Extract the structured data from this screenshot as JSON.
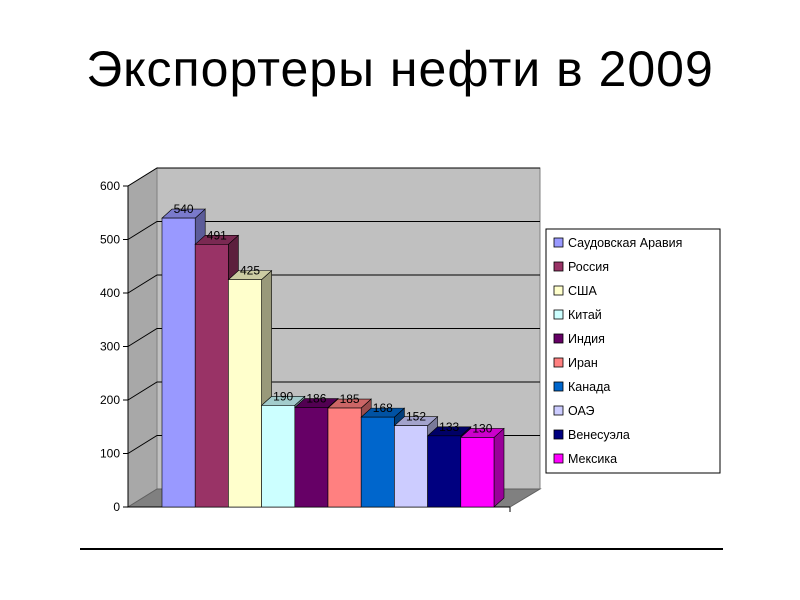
{
  "slide": {
    "title": "Экспортеры нефти в 2009"
  },
  "chart_data": {
    "type": "bar",
    "title": "Экспортеры нефти в 2009",
    "xlabel": "",
    "ylabel": "",
    "ylim": [
      0,
      600
    ],
    "yticks": [
      "0",
      "100",
      "200",
      "300",
      "400",
      "500",
      "600"
    ],
    "grid": true,
    "legend_position": "right",
    "series": [
      {
        "name": "Саудовская Аравия",
        "value": 540,
        "color": "#9999FF"
      },
      {
        "name": "Россия",
        "value": 491,
        "color": "#993366"
      },
      {
        "name": "США",
        "value": 425,
        "color": "#FFFFCC"
      },
      {
        "name": "Китай",
        "value": 190,
        "color": "#CCFFFF"
      },
      {
        "name": "Индия",
        "value": 186,
        "color": "#660066"
      },
      {
        "name": "Иран",
        "value": 185,
        "color": "#FF8080"
      },
      {
        "name": "Канада",
        "value": 168,
        "color": "#0066CC"
      },
      {
        "name": "ОАЭ",
        "value": 152,
        "color": "#CCCCFF"
      },
      {
        "name": "Венесуэла",
        "value": 133,
        "color": "#000080"
      },
      {
        "name": "Мексика",
        "value": 130,
        "color": "#FF00FF"
      }
    ]
  }
}
